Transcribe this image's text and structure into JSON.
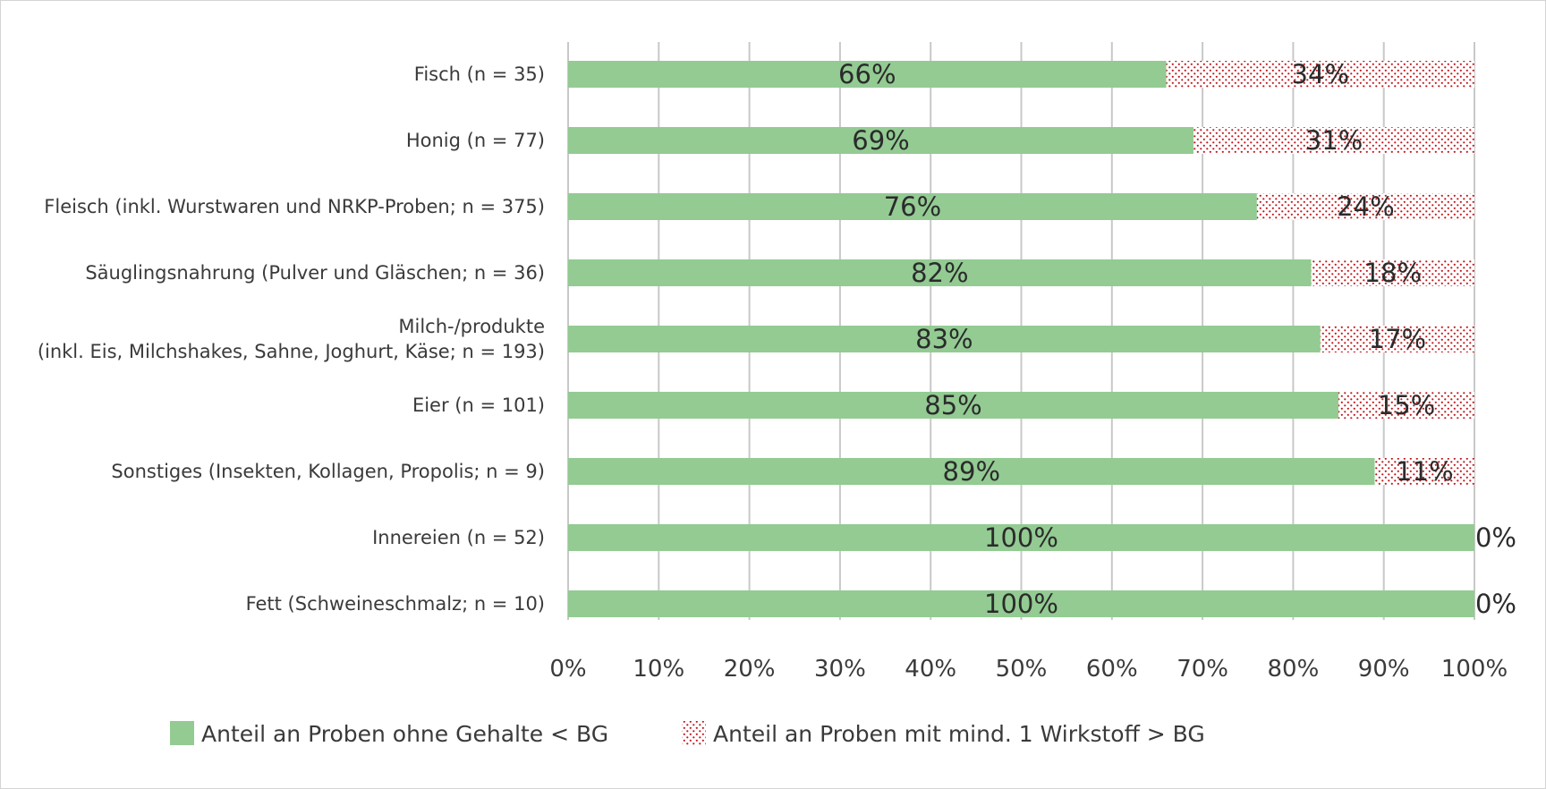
{
  "chart_data": {
    "type": "bar",
    "orientation": "horizontal",
    "stacked": true,
    "categories": [
      [
        "Fisch (n = 35)"
      ],
      [
        "Honig (n = 77)"
      ],
      [
        "Fleisch (inkl. Wurstwaren und NRKP-Proben; n = 375)"
      ],
      [
        "Säuglingsnahrung (Pulver und Gläschen; n = 36)"
      ],
      [
        "Milch-/produkte",
        "(inkl. Eis, Milchshakes, Sahne, Joghurt, Käse; n = 193)"
      ],
      [
        "Eier (n = 101)"
      ],
      [
        "Sonstiges (Insekten, Kollagen, Propolis; n = 9)"
      ],
      [
        "Innereien (n = 52)"
      ],
      [
        "Fett (Schweineschmalz; n = 10)"
      ]
    ],
    "series": [
      {
        "name": "Anteil an Proben ohne Gehalte < BG",
        "color": "#93cb93",
        "pattern": "solid",
        "values": [
          66,
          69,
          76,
          82,
          83,
          85,
          89,
          100,
          100
        ],
        "labels": [
          "66%",
          "69%",
          "76%",
          "82%",
          "83%",
          "85%",
          "89%",
          "100%",
          "100%"
        ]
      },
      {
        "name": "Anteil an Proben mit mind. 1 Wirkstoff > BG",
        "color": "#c0161c",
        "pattern": "dotted",
        "values": [
          34,
          31,
          24,
          18,
          17,
          15,
          11,
          0,
          0
        ],
        "labels": [
          "34%",
          "31%",
          "24%",
          "18%",
          "17%",
          "15%",
          "11%",
          "0%",
          "0%"
        ]
      }
    ],
    "xlim": [
      0,
      100
    ],
    "xticks": [
      "0%",
      "10%",
      "20%",
      "30%",
      "40%",
      "50%",
      "60%",
      "70%",
      "80%",
      "90%",
      "100%"
    ],
    "grid": true,
    "legend_position": "bottom"
  }
}
